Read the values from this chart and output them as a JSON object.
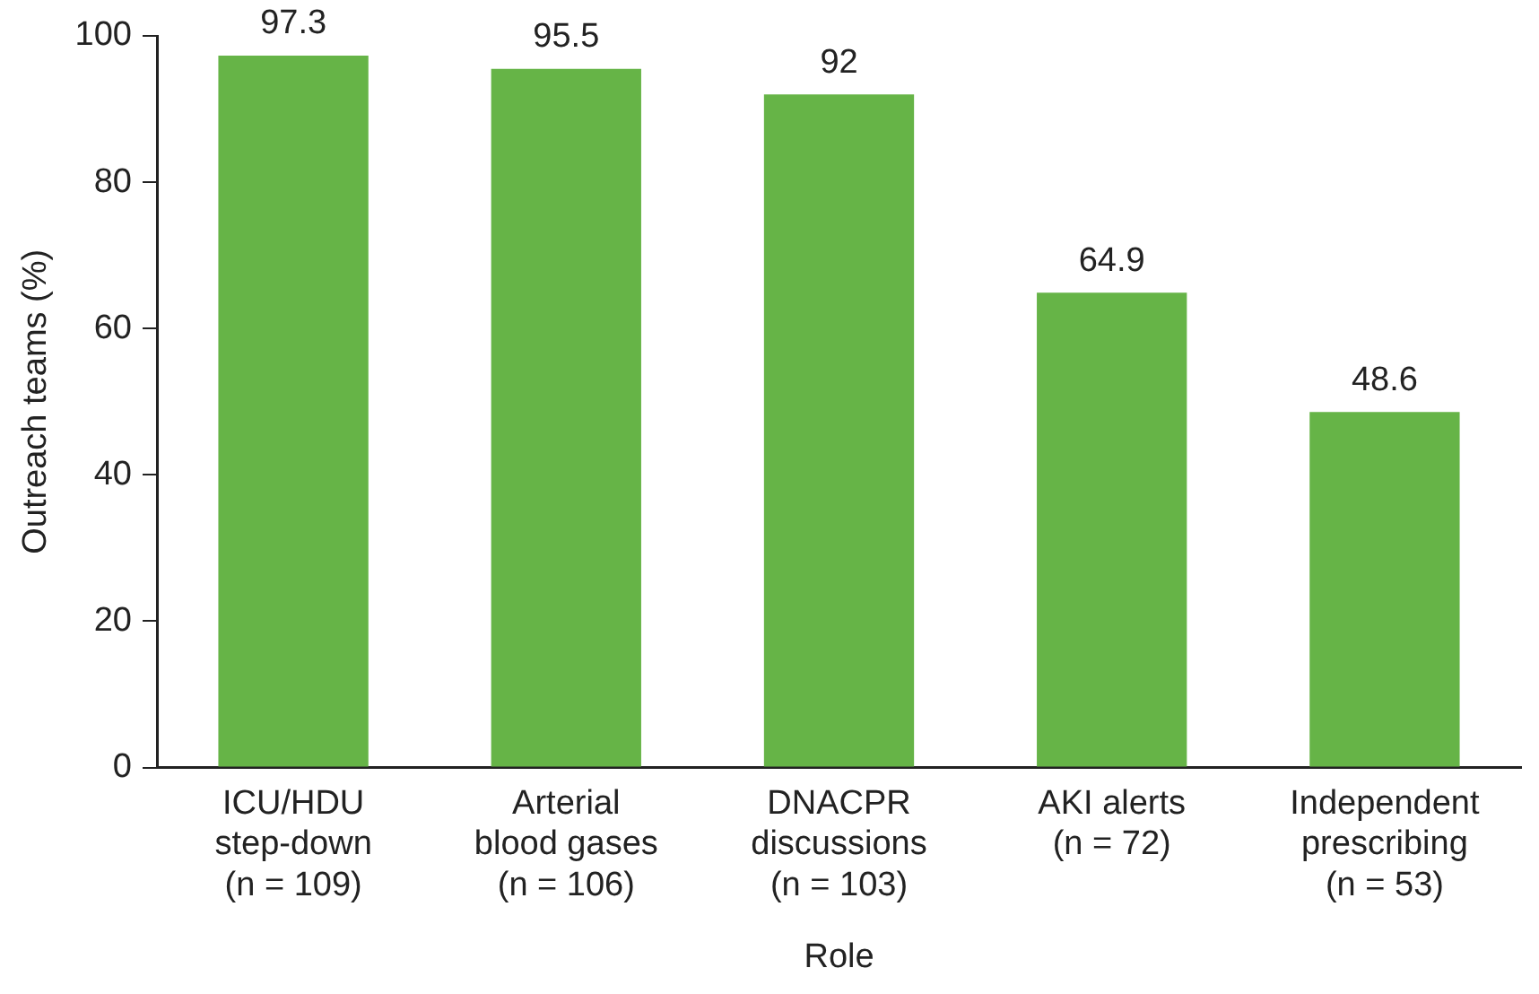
{
  "chart_data": {
    "type": "bar",
    "xlabel": "Role",
    "ylabel": "Outreach teams (%)",
    "categories": [
      "ICU/HDU\nstep-down\n(n = 109)",
      "Arterial\nblood gases\n(n = 106)",
      "DNACPR\ndiscussions\n(n = 103)",
      "AKI alerts\n(n = 72)",
      "Independent\nprescribing\n(n = 53)"
    ],
    "values": [
      97.3,
      95.5,
      92,
      64.9,
      48.6
    ],
    "color": "#66b447",
    "ylim": [
      0,
      100
    ],
    "yticks": [
      0,
      20,
      40,
      60,
      80,
      100
    ],
    "grid": false,
    "legend": false,
    "data_labels": true
  }
}
